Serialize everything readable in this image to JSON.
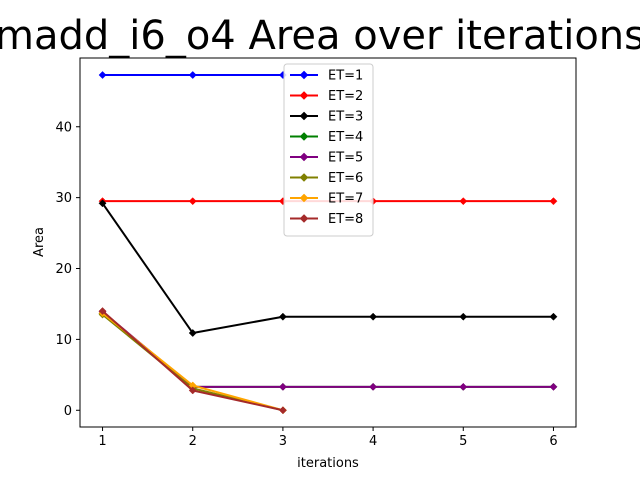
{
  "chart_data": {
    "type": "line",
    "title": "madd_i6_o4 Area over iterations",
    "xlabel": "iterations",
    "ylabel": "Area",
    "xlim": [
      0.75,
      6.25
    ],
    "ylim": [
      -2.36,
      49.7
    ],
    "xticks": [
      1,
      2,
      3,
      4,
      5,
      6
    ],
    "yticks": [
      0,
      10,
      20,
      30,
      40
    ],
    "grid": false,
    "legend_position": "top-center",
    "marker": "diamond",
    "series": [
      {
        "name": "ET=1",
        "color": "#0000ff",
        "x": [
          1,
          2,
          3
        ],
        "values": [
          47.3,
          47.3,
          47.3
        ]
      },
      {
        "name": "ET=2",
        "color": "#ff0000",
        "x": [
          1,
          2,
          3,
          4,
          5,
          6
        ],
        "values": [
          29.5,
          29.5,
          29.5,
          29.5,
          29.5,
          29.5
        ]
      },
      {
        "name": "ET=3",
        "color": "#000000",
        "x": [
          1,
          2,
          3,
          4,
          5,
          6
        ],
        "values": [
          29.2,
          10.9,
          13.2,
          13.2,
          13.2,
          13.2
        ]
      },
      {
        "name": "ET=4",
        "color": "#008000",
        "x": [
          1,
          2,
          3,
          4,
          5,
          6
        ],
        "values": [
          13.6,
          3.3,
          3.3,
          3.3,
          3.3,
          3.3
        ]
      },
      {
        "name": "ET=5",
        "color": "#800080",
        "x": [
          1,
          2,
          3,
          4,
          5,
          6
        ],
        "values": [
          13.9,
          3.3,
          3.3,
          3.3,
          3.3,
          3.3
        ]
      },
      {
        "name": "ET=6",
        "color": "#808000",
        "x": [
          1,
          2,
          3
        ],
        "values": [
          13.5,
          3.1,
          0.0
        ]
      },
      {
        "name": "ET=7",
        "color": "#ffa500",
        "x": [
          1,
          2,
          3
        ],
        "values": [
          13.7,
          3.5,
          0.0
        ]
      },
      {
        "name": "ET=8",
        "color": "#a52a2a",
        "x": [
          1,
          2,
          3
        ],
        "values": [
          14.0,
          2.8,
          0.0
        ]
      }
    ]
  }
}
